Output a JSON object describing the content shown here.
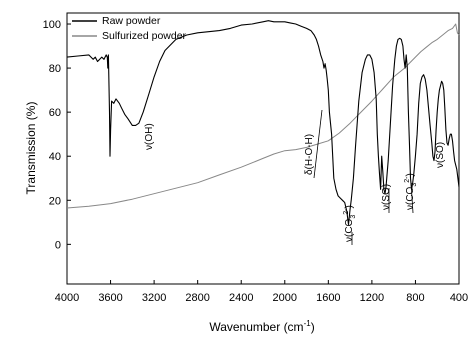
{
  "chart_data": {
    "type": "line",
    "xlabel": "Wavenumber (cm",
    "xlabel_sup": "-1",
    "xlabel_end": ")",
    "ylabel": "Transmission (%)",
    "xlim": [
      4000,
      400
    ],
    "ylim": [
      -18,
      105
    ],
    "x_ticks": [
      4000,
      3600,
      3200,
      2800,
      2400,
      2000,
      1600,
      1200,
      800,
      400
    ],
    "y_ticks": [
      0,
      20,
      40,
      60,
      80,
      100
    ],
    "legend_position": "top-left",
    "series": [
      {
        "name": "Raw powder",
        "color": "#000000",
        "points": [
          [
            4000,
            85
          ],
          [
            3900,
            85.5
          ],
          [
            3800,
            86
          ],
          [
            3760,
            84
          ],
          [
            3740,
            85
          ],
          [
            3720,
            83
          ],
          [
            3700,
            84
          ],
          [
            3680,
            85
          ],
          [
            3660,
            84
          ],
          [
            3640,
            86
          ],
          [
            3630,
            85
          ],
          [
            3625,
            80
          ],
          [
            3620,
            86
          ],
          [
            3610,
            60
          ],
          [
            3605,
            40
          ],
          [
            3600,
            52
          ],
          [
            3590,
            65
          ],
          [
            3570,
            64
          ],
          [
            3550,
            66
          ],
          [
            3520,
            64
          ],
          [
            3500,
            62
          ],
          [
            3470,
            59
          ],
          [
            3440,
            57
          ],
          [
            3400,
            54
          ],
          [
            3370,
            54
          ],
          [
            3340,
            55
          ],
          [
            3300,
            60
          ],
          [
            3250,
            68
          ],
          [
            3200,
            76
          ],
          [
            3150,
            83
          ],
          [
            3100,
            88
          ],
          [
            3000,
            93
          ],
          [
            2900,
            95
          ],
          [
            2800,
            96
          ],
          [
            2700,
            96.5
          ],
          [
            2600,
            97
          ],
          [
            2500,
            98
          ],
          [
            2400,
            99.5
          ],
          [
            2300,
            100
          ],
          [
            2200,
            101
          ],
          [
            2150,
            101.5
          ],
          [
            2100,
            101
          ],
          [
            2050,
            101
          ],
          [
            2000,
            101
          ],
          [
            1950,
            100.5
          ],
          [
            1900,
            100
          ],
          [
            1850,
            99
          ],
          [
            1800,
            98
          ],
          [
            1760,
            97
          ],
          [
            1730,
            95
          ],
          [
            1710,
            93
          ],
          [
            1690,
            90
          ],
          [
            1670,
            86
          ],
          [
            1650,
            83
          ],
          [
            1640,
            80
          ],
          [
            1630,
            82
          ],
          [
            1620,
            79
          ],
          [
            1610,
            75
          ],
          [
            1600,
            70
          ],
          [
            1590,
            60
          ],
          [
            1580,
            55
          ],
          [
            1570,
            50
          ],
          [
            1560,
            40
          ],
          [
            1550,
            30
          ],
          [
            1530,
            25
          ],
          [
            1510,
            22
          ],
          [
            1490,
            21
          ],
          [
            1470,
            20
          ],
          [
            1450,
            19
          ],
          [
            1430,
            15
          ],
          [
            1415,
            9
          ],
          [
            1400,
            16
          ],
          [
            1390,
            20
          ],
          [
            1370,
            30
          ],
          [
            1350,
            45
          ],
          [
            1320,
            65
          ],
          [
            1290,
            78
          ],
          [
            1260,
            84
          ],
          [
            1240,
            86
          ],
          [
            1220,
            86
          ],
          [
            1200,
            84
          ],
          [
            1180,
            78
          ],
          [
            1160,
            66
          ],
          [
            1150,
            50
          ],
          [
            1140,
            40
          ],
          [
            1130,
            32
          ],
          [
            1120,
            25
          ],
          [
            1110,
            40
          ],
          [
            1100,
            33
          ],
          [
            1090,
            25
          ],
          [
            1080,
            23
          ],
          [
            1070,
            26
          ],
          [
            1050,
            38
          ],
          [
            1030,
            55
          ],
          [
            1010,
            72
          ],
          [
            990,
            84
          ],
          [
            975,
            90
          ],
          [
            960,
            93
          ],
          [
            945,
            93.5
          ],
          [
            930,
            93
          ],
          [
            915,
            90
          ],
          [
            905,
            84
          ],
          [
            895,
            80
          ],
          [
            885,
            86
          ],
          [
            875,
            80
          ],
          [
            865,
            60
          ],
          [
            855,
            45
          ],
          [
            845,
            30
          ],
          [
            835,
            25
          ],
          [
            825,
            28
          ],
          [
            815,
            32
          ],
          [
            800,
            40
          ],
          [
            785,
            50
          ],
          [
            770,
            64
          ],
          [
            755,
            73
          ],
          [
            740,
            76
          ],
          [
            725,
            77
          ],
          [
            710,
            75
          ],
          [
            695,
            70
          ],
          [
            680,
            62
          ],
          [
            665,
            54
          ],
          [
            650,
            46
          ],
          [
            640,
            40
          ],
          [
            630,
            38
          ],
          [
            620,
            42
          ],
          [
            610,
            52
          ],
          [
            600,
            60
          ],
          [
            590,
            66
          ],
          [
            580,
            70
          ],
          [
            570,
            72
          ],
          [
            560,
            74
          ],
          [
            550,
            73
          ],
          [
            540,
            70
          ],
          [
            530,
            62
          ],
          [
            520,
            52
          ],
          [
            510,
            46
          ],
          [
            500,
            45
          ],
          [
            490,
            48
          ],
          [
            480,
            50
          ],
          [
            470,
            50
          ],
          [
            460,
            47
          ],
          [
            450,
            42
          ],
          [
            440,
            38
          ],
          [
            430,
            36
          ],
          [
            420,
            34
          ],
          [
            410,
            30
          ],
          [
            400,
            26
          ]
        ]
      },
      {
        "name": "Sulfurized powder",
        "color": "#888888",
        "points": [
          [
            4000,
            16.5
          ],
          [
            3800,
            17.3
          ],
          [
            3600,
            18.5
          ],
          [
            3400,
            20.5
          ],
          [
            3200,
            23
          ],
          [
            3000,
            25.5
          ],
          [
            2800,
            28
          ],
          [
            2600,
            31.5
          ],
          [
            2400,
            35
          ],
          [
            2300,
            37
          ],
          [
            2200,
            39
          ],
          [
            2100,
            41
          ],
          [
            2000,
            42.5
          ],
          [
            1900,
            43
          ],
          [
            1800,
            44
          ],
          [
            1700,
            45.5
          ],
          [
            1600,
            47
          ],
          [
            1500,
            50.5
          ],
          [
            1400,
            55
          ],
          [
            1300,
            60
          ],
          [
            1200,
            65
          ],
          [
            1100,
            70.5
          ],
          [
            1000,
            76
          ],
          [
            900,
            80
          ],
          [
            850,
            82.5
          ],
          [
            800,
            85
          ],
          [
            750,
            87.5
          ],
          [
            700,
            89.5
          ],
          [
            650,
            91.5
          ],
          [
            600,
            93
          ],
          [
            550,
            95
          ],
          [
            500,
            97
          ],
          [
            460,
            98
          ],
          [
            430,
            100
          ],
          [
            415,
            96
          ],
          [
            400,
            95
          ]
        ]
      }
    ],
    "annotations": [
      {
        "text": "ν(OH)",
        "x": 3400
      },
      {
        "text": "δ(H-O-H)",
        "x": 1640
      },
      {
        "text": "ν(CO",
        "sub": "3",
        "sup": "2-",
        "close": ")",
        "x": 1415
      },
      {
        "text": "ν(SO)",
        "x": 1110
      },
      {
        "text": "ν(CO",
        "sub": "3",
        "sup": "2-",
        "close": ")",
        "x": 870
      },
      {
        "text": "ν(SO)",
        "x": 600
      }
    ]
  }
}
